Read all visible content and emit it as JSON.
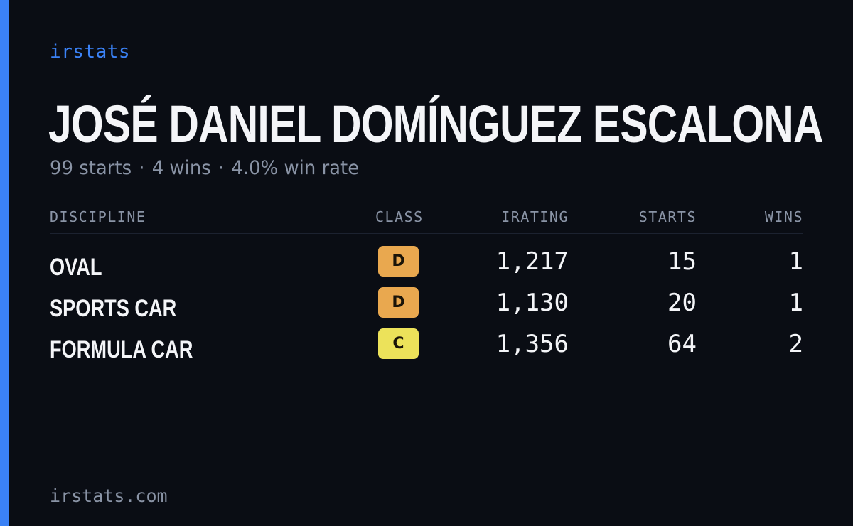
{
  "brand": "irstats",
  "driver": {
    "name": "JOSÉ DANIEL DOMÍNGUEZ ESCALONA",
    "summary": {
      "starts": "99 starts",
      "wins": "4 wins",
      "win_rate": "4.0% win rate",
      "separator": "·"
    }
  },
  "table": {
    "headers": {
      "discipline": "DISCIPLINE",
      "class": "CLASS",
      "irating": "IRATING",
      "starts": "STARTS",
      "wins": "WINS"
    },
    "rows": [
      {
        "discipline": "OVAL",
        "class": "D",
        "class_color": "#e9a84f",
        "irating": "1,217",
        "starts": "15",
        "wins": "1"
      },
      {
        "discipline": "SPORTS CAR",
        "class": "D",
        "class_color": "#e9a84f",
        "irating": "1,130",
        "starts": "20",
        "wins": "1"
      },
      {
        "discipline": "FORMULA CAR",
        "class": "C",
        "class_color": "#ece25a",
        "irating": "1,356",
        "starts": "64",
        "wins": "2"
      }
    ]
  },
  "footer": "irstats.com",
  "colors": {
    "background": "#0a0d14",
    "accent": "#3b82f6",
    "text": "#f4f5f8",
    "muted": "#8a94a6"
  }
}
